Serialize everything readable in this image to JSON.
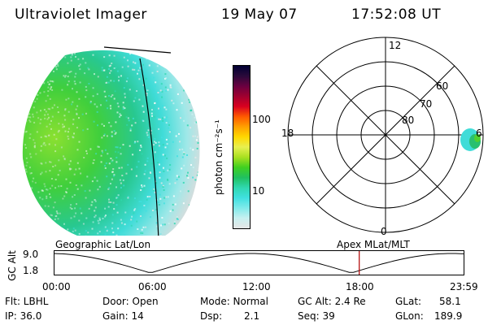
{
  "header": {
    "instrument": "Ultraviolet Imager",
    "date": "19 May 07",
    "time": "17:52:08 UT"
  },
  "colorbar": {
    "unit_label": "photon cm⁻²s⁻¹",
    "ticks": [
      "100",
      "10"
    ],
    "colors": [
      "#000033",
      "#2a0a3a",
      "#6a0040",
      "#a00030",
      "#d80020",
      "#ff5a00",
      "#ffa000",
      "#ffd800",
      "#e8f050",
      "#a8e020",
      "#40d020",
      "#20c060",
      "#30d8b0",
      "#40e0e0",
      "#80eaea",
      "#c8f0f0",
      "#e6e6e6"
    ]
  },
  "polar": {
    "mlt_labels": [
      "12",
      "18",
      "6",
      "0"
    ],
    "lat_labels": [
      "60",
      "70",
      "80"
    ]
  },
  "altitude_plot": {
    "y_axis_label": "GC Alt",
    "y_ticks": [
      "9.0",
      "1.8"
    ],
    "left_label": "Geographic Lat/Lon",
    "right_label": "Apex MLat/MLT",
    "x_ticks": [
      "00:00",
      "06:00",
      "12:00",
      "18:00",
      "23:59"
    ],
    "current_time_fraction": 0.7445
  },
  "status": {
    "filter": "Flt: LBHL",
    "door": "Door: Open",
    "mode": "Mode: Normal",
    "gc_alt": "GC Alt: 2.4 Re",
    "glat_label": "GLat:",
    "glat_value": "58.1",
    "ip": "IP: 36.0",
    "gain": "Gain: 14",
    "dsp_label": "Dsp:",
    "dsp_value": "2.1",
    "seq": "Seq: 39",
    "glon_label": "GLon:",
    "glon_value": "189.9"
  }
}
